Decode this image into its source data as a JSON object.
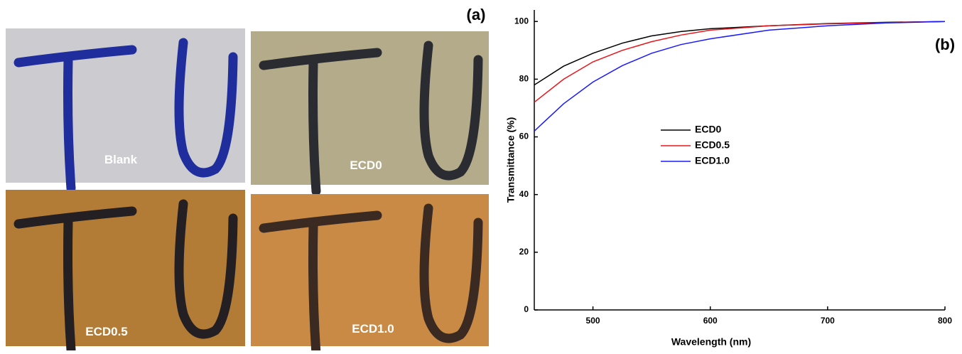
{
  "photo_panel": {
    "label": "(a)",
    "captions": [
      "Blank",
      "ECD0",
      "ECD0.5",
      "ECD1.0"
    ]
  },
  "chart_data": {
    "type": "line",
    "label": "(b)",
    "x_label": "Wavelength (nm)",
    "y_label": "Transmittance (%)",
    "x": [
      450,
      475,
      500,
      525,
      550,
      575,
      600,
      650,
      700,
      750,
      800
    ],
    "series": [
      {
        "name": "ECD0",
        "color": "#000000",
        "values": [
          78,
          84.5,
          89,
          92.5,
          95,
          96.5,
          97.5,
          98.5,
          99.3,
          99.7,
          100
        ]
      },
      {
        "name": "ECD0.5",
        "color": "#e8161b",
        "values": [
          72,
          80,
          86,
          90,
          93,
          95.3,
          97,
          98.5,
          99.2,
          99.6,
          100
        ]
      },
      {
        "name": "ECD1.0",
        "color": "#1a1aff",
        "values": [
          62,
          71.5,
          79,
          84.7,
          89,
          92,
          94,
          97,
          98.5,
          99.5,
          100
        ]
      }
    ],
    "xlim": [
      450,
      800
    ],
    "xticks": [
      500,
      600,
      700,
      800
    ],
    "ylim": [
      0,
      104
    ],
    "yticks": [
      0,
      20,
      40,
      60,
      80,
      100
    ]
  }
}
